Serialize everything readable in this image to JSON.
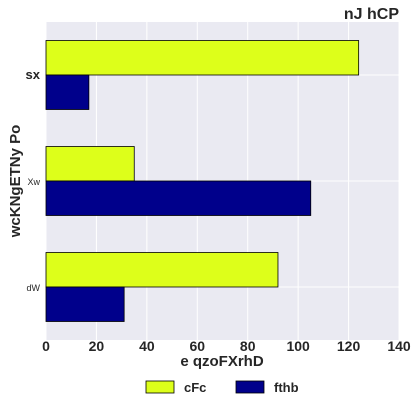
{
  "chart_data": {
    "type": "bar",
    "orientation": "horizontal",
    "title": "nJ  hCP",
    "xlabel": "e qzoFXrhD",
    "ylabel": "wcKNgETNy Po",
    "categories": [
      "sx",
      "Xw",
      "dW"
    ],
    "xlim": [
      0,
      140
    ],
    "xticks": [
      "0",
      "20",
      "40",
      "60",
      "80",
      "100",
      "120",
      "140"
    ],
    "series": [
      {
        "name": "cFc",
        "color": "#ddff1a",
        "values": [
          124,
          35,
          92
        ]
      },
      {
        "name": "fthb",
        "color": "#00008b",
        "values": [
          17,
          105,
          31
        ]
      }
    ],
    "grid": true,
    "legend": "bottom-center"
  }
}
